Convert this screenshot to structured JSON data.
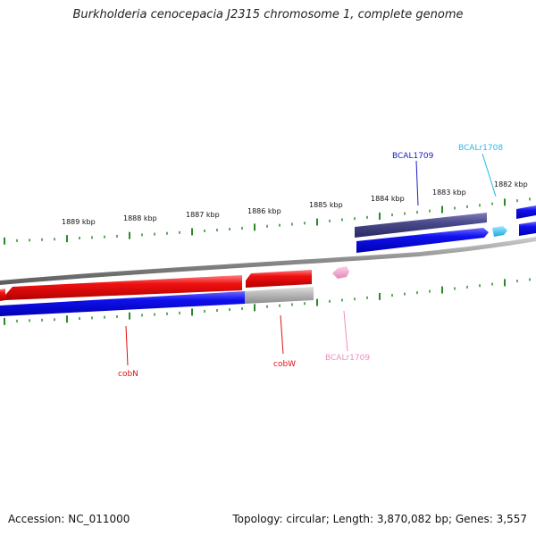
{
  "title": "Burkholderia cenocepacia J2315 chromosome 1, complete genome",
  "footer": {
    "accession": "Accession: NC_011000",
    "summary": "Topology: circular; Length: 3,870,082 bp; Genes: 3,557"
  },
  "ruler": {
    "labels": [
      "1889 kbp",
      "1888 kbp",
      "1887 kbp",
      "1886 kbp",
      "1885 kbp",
      "1884 kbp",
      "1883 kbp",
      "1882 kbp"
    ]
  },
  "genes": [
    {
      "name": "BCALr1708",
      "color": "#29b8e8",
      "strand": "forward"
    },
    {
      "name": "BCAL1709",
      "color": "#1a1acc",
      "strand": "forward"
    },
    {
      "name": "BCALr1709",
      "color": "#f08cc4",
      "strand": "reverse"
    },
    {
      "name": "cobW",
      "color": "#e01010",
      "strand": "reverse"
    },
    {
      "name": "cobN",
      "color": "#e01010",
      "strand": "reverse"
    }
  ],
  "colors": {
    "forward_cds": "#0a0ae0",
    "reverse_cds": "#e81010",
    "forward_rna": "#40c8f0",
    "reverse_rna": "#f4a6d0",
    "highlight": "#4a4a8c",
    "backbone": "#8a8a8a",
    "gray_feature": "#b8b8b8",
    "ticks": "#2a8a2a"
  }
}
